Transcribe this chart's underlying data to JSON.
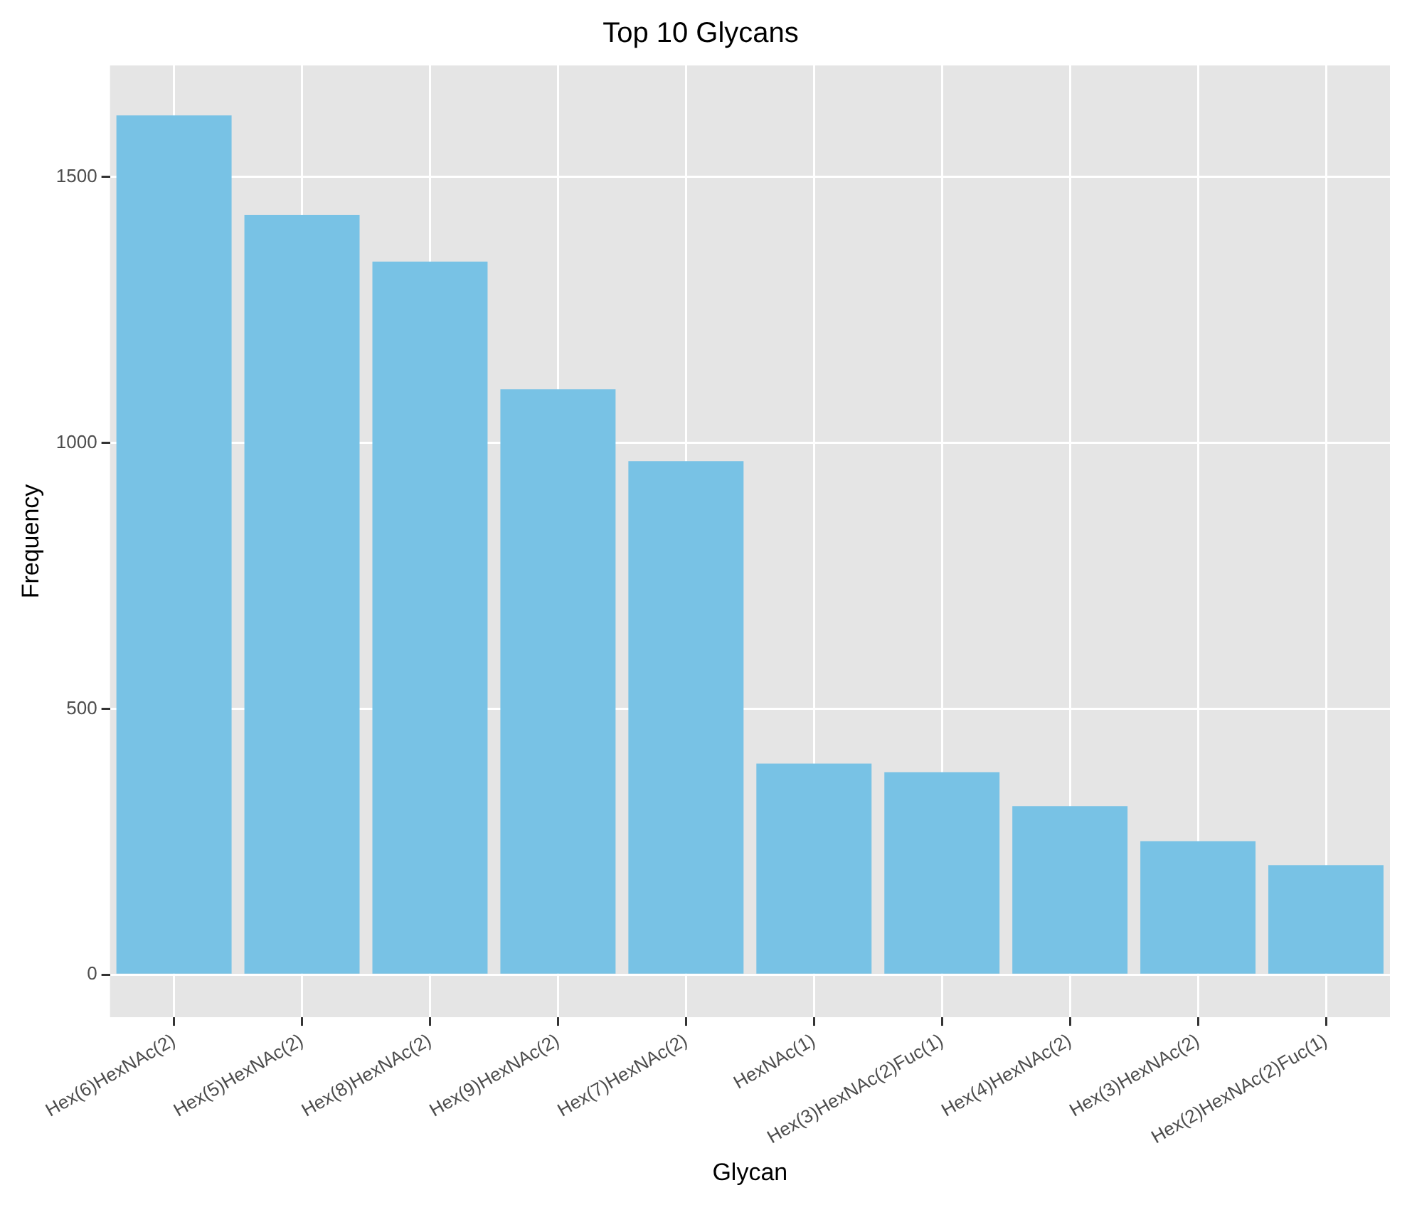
{
  "chart_data": {
    "type": "bar",
    "title": "Top 10 Glycans",
    "xlabel": "Glycan",
    "ylabel": "Frequency",
    "categories": [
      "Hex(6)HexNAc(2)",
      "Hex(5)HexNAc(2)",
      "Hex(8)HexNAc(2)",
      "Hex(9)HexNAc(2)",
      "Hex(7)HexNAc(2)",
      "HexNAc(1)",
      "Hex(3)HexNAc(2)Fuc(1)",
      "Hex(4)HexNAc(2)",
      "Hex(3)HexNAc(2)",
      "Hex(2)HexNAc(2)Fuc(1)"
    ],
    "values": [
      1616,
      1429,
      1341,
      1101,
      966,
      397,
      381,
      317,
      251,
      206
    ],
    "color": "#78c2e5",
    "ylim": [
      -80,
      1710
    ],
    "yticks": [
      0,
      500,
      1000,
      1500
    ],
    "grid": true
  }
}
